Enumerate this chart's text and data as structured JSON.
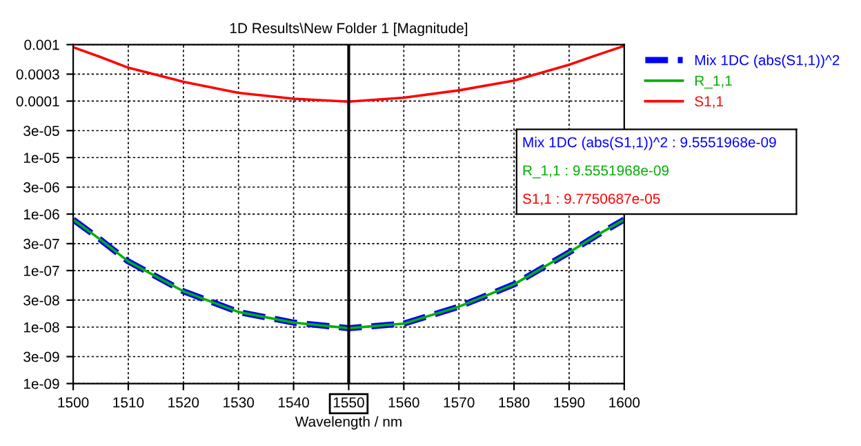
{
  "chart_data": {
    "type": "line",
    "title": "1D Results\\New Folder 1 [Magnitude]",
    "xlabel": "Wavelength / nm",
    "x": [
      1500,
      1505,
      1510,
      1520,
      1530,
      1540,
      1550,
      1560,
      1570,
      1580,
      1590,
      1595,
      1600
    ],
    "series": [
      {
        "name": "Mix 1DC (abs(S1,1))^2",
        "color": "#0000ff",
        "line_style": "dashed",
        "values": [
          8e-07,
          3.5e-07,
          1.45e-07,
          4.3e-08,
          1.85e-08,
          1.2e-08,
          9.5551968e-09,
          1.15e-08,
          2.3e-08,
          5.7e-08,
          2.1e-07,
          4.2e-07,
          8e-07
        ]
      },
      {
        "name": "R_1,1",
        "color": "#00b000",
        "line_style": "solid",
        "values": [
          8e-07,
          3.5e-07,
          1.45e-07,
          4.3e-08,
          1.85e-08,
          1.2e-08,
          9.5551968e-09,
          1.15e-08,
          2.3e-08,
          5.7e-08,
          2.1e-07,
          4.2e-07,
          8e-07
        ]
      },
      {
        "name": "S1,1",
        "color": "#ff0000",
        "line_style": "solid",
        "values": [
          0.0009,
          0.0006,
          0.00039,
          0.00022,
          0.00014,
          0.00011,
          9.7750687e-05,
          0.000115,
          0.000155,
          0.00023,
          0.00044,
          0.00065,
          0.00095
        ]
      }
    ],
    "log": "y",
    "xlim": [
      1500,
      1600
    ],
    "xticks": [
      1500,
      1510,
      1520,
      1530,
      1540,
      1550,
      1560,
      1570,
      1580,
      1590,
      1600
    ],
    "ylim": [
      1e-09,
      0.001
    ],
    "yticks": [
      {
        "value": 1e-09,
        "label": "1e-09"
      },
      {
        "value": 3e-09,
        "label": "3e-09"
      },
      {
        "value": 1e-08,
        "label": "1e-08"
      },
      {
        "value": 3e-08,
        "label": "3e-08"
      },
      {
        "value": 1e-07,
        "label": "1e-07"
      },
      {
        "value": 3e-07,
        "label": "3e-07"
      },
      {
        "value": 1e-06,
        "label": "1e-06"
      },
      {
        "value": 3e-06,
        "label": "3e-06"
      },
      {
        "value": 1e-05,
        "label": "1e-05"
      },
      {
        "value": 3e-05,
        "label": "3e-05"
      },
      {
        "value": 0.0001,
        "label": "0.0001"
      },
      {
        "value": 0.0003,
        "label": "0.0003"
      },
      {
        "value": 0.001,
        "label": "0.001"
      }
    ],
    "ref_lines": [
      {
        "axis": "x",
        "value": 1550,
        "color": "#000000"
      }
    ],
    "annotations": [
      "Mix 1DC (abs(S1,1))^2 : 9.5551968e-09",
      "R_1,1 : 9.5551968e-09",
      "S1,1 : 9.7750687e-05"
    ],
    "grid": true,
    "legend": "top right"
  }
}
